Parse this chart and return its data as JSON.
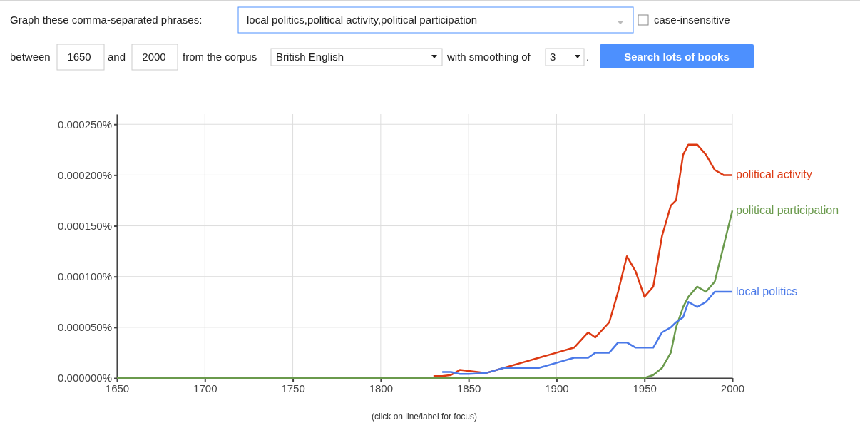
{
  "chart_data": {
    "type": "line",
    "x": [
      1650,
      1700,
      1715,
      1720,
      1725,
      1745,
      1750,
      1755,
      1770,
      1800,
      1820,
      1830,
      1835,
      1840,
      1845,
      1850,
      1860,
      1870,
      1880,
      1890,
      1900,
      1910,
      1918,
      1922,
      1930,
      1935,
      1940,
      1945,
      1950,
      1955,
      1960,
      1965,
      1968,
      1972,
      1975,
      1980,
      1985,
      1990,
      1995,
      2000
    ],
    "series": [
      {
        "name": "political activity",
        "color": "#dc3912",
        "values": [
          null,
          null,
          null,
          null,
          null,
          null,
          null,
          null,
          null,
          null,
          null,
          2e-06,
          2e-06,
          3e-06,
          8e-06,
          7e-06,
          5e-06,
          1e-05,
          1.5e-05,
          2e-05,
          2.5e-05,
          3e-05,
          4.5e-05,
          4e-05,
          5.5e-05,
          8.5e-05,
          0.00012,
          0.000105,
          8e-05,
          9e-05,
          0.00014,
          0.00017,
          0.000175,
          0.00022,
          0.00023,
          0.00023,
          0.00022,
          0.000205,
          0.0002,
          0.0002
        ]
      },
      {
        "name": "political participation",
        "color": "#6a9a4c",
        "values": [
          0,
          0,
          0,
          0,
          0,
          0,
          0,
          0,
          0,
          0,
          0,
          0,
          0,
          0,
          0,
          0,
          0,
          0,
          0,
          0,
          0,
          0,
          0,
          0,
          0,
          0,
          0,
          0,
          0,
          3e-06,
          1e-05,
          2.5e-05,
          5e-05,
          7e-05,
          8e-05,
          9e-05,
          8.5e-05,
          9.5e-05,
          0.00013,
          0.000165
        ]
      },
      {
        "name": "local politics",
        "color": "#4a79e8",
        "values": [
          null,
          null,
          null,
          null,
          null,
          null,
          null,
          null,
          null,
          null,
          null,
          null,
          6e-06,
          6e-06,
          4e-06,
          4e-06,
          5e-06,
          1e-05,
          1e-05,
          1e-05,
          1.5e-05,
          2e-05,
          2e-05,
          2.5e-05,
          2.5e-05,
          3.5e-05,
          3.5e-05,
          3e-05,
          3e-05,
          3e-05,
          4.5e-05,
          5e-05,
          5.5e-05,
          6e-05,
          7.5e-05,
          7e-05,
          7.5e-05,
          8.5e-05,
          8.5e-05,
          8.5e-05
        ]
      }
    ],
    "xlim": [
      1650,
      2000
    ],
    "xticks": [
      1650,
      1700,
      1750,
      1800,
      1850,
      1900,
      1950,
      2000
    ],
    "ylim": [
      0,
      0.00026
    ],
    "yticks": [
      {
        "value": 0,
        "label": "0.000000%"
      },
      {
        "value": 5e-05,
        "label": "0.000050%"
      },
      {
        "value": 0.0001,
        "label": "0.000100%"
      },
      {
        "value": 0.00015,
        "label": "0.000150%"
      },
      {
        "value": 0.0002,
        "label": "0.000200%"
      },
      {
        "value": 0.00025,
        "label": "0.000250%"
      }
    ],
    "grid": true,
    "legend": false,
    "line_style": "solid",
    "marker": "none",
    "annotations": [
      "Graph these comma-separated phrases:",
      "local politics,political activity,political participation",
      "case-insensitive",
      "between",
      "1650",
      "and",
      "2000",
      "from the corpus",
      "British English",
      "with smoothing of",
      "3",
      ".",
      "Search lots of books",
      "(click on line/label for focus)"
    ]
  }
}
